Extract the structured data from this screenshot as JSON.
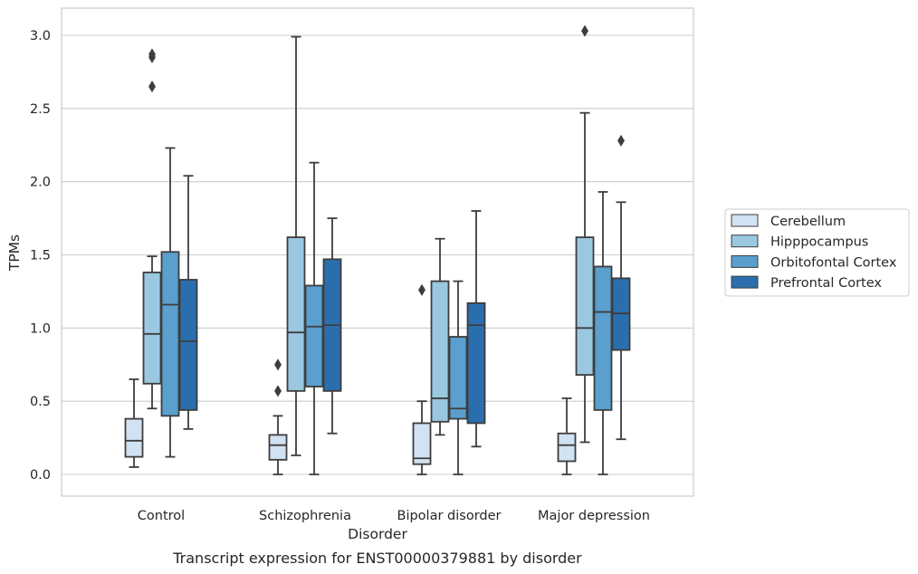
{
  "chart_data": {
    "type": "box",
    "caption": "Transcript expression for ENST00000379881 by disorder",
    "xlabel": "Disorder",
    "ylabel": "TPMs",
    "ylim": [
      -0.15,
      3.2
    ],
    "yticks": [
      0.0,
      0.5,
      1.0,
      1.5,
      2.0,
      2.5,
      3.0
    ],
    "ytick_labels": [
      "0.0",
      "0.5",
      "1.0",
      "1.5",
      "2.0",
      "2.5",
      "3.0"
    ],
    "grid": "horizontal",
    "legend_position": "right",
    "categories": [
      "Control",
      "Schizophrenia",
      "Bipolar disorder",
      "Major depression"
    ],
    "series": [
      {
        "name": "Cerebellum",
        "color": "#d1e2f2",
        "boxes": [
          {
            "whislo": 0.05,
            "q1": 0.12,
            "median": 0.23,
            "q3": 0.38,
            "whishi": 0.65,
            "fliers": []
          },
          {
            "whislo": 0.0,
            "q1": 0.1,
            "median": 0.2,
            "q3": 0.27,
            "whishi": 0.4,
            "fliers": [
              0.57,
              0.75
            ]
          },
          {
            "whislo": 0.0,
            "q1": 0.07,
            "median": 0.11,
            "q3": 0.35,
            "whishi": 0.5,
            "fliers": [
              1.26
            ]
          },
          {
            "whislo": 0.0,
            "q1": 0.09,
            "median": 0.2,
            "q3": 0.28,
            "whishi": 0.52,
            "fliers": []
          }
        ]
      },
      {
        "name": "Hipppocampus",
        "color": "#9ac8e0",
        "boxes": [
          {
            "whislo": 0.45,
            "q1": 0.62,
            "median": 0.96,
            "q3": 1.38,
            "whishi": 1.49,
            "fliers": [
              2.65,
              2.85,
              2.87
            ]
          },
          {
            "whislo": 0.13,
            "q1": 0.57,
            "median": 0.97,
            "q3": 1.62,
            "whishi": 2.99,
            "fliers": []
          },
          {
            "whislo": 0.27,
            "q1": 0.36,
            "median": 0.52,
            "q3": 1.32,
            "whishi": 1.61,
            "fliers": []
          },
          {
            "whislo": 0.22,
            "q1": 0.68,
            "median": 1.0,
            "q3": 1.62,
            "whishi": 2.47,
            "fliers": [
              3.03
            ]
          }
        ]
      },
      {
        "name": "Orbitofontal Cortex",
        "color": "#5a9fcd",
        "boxes": [
          {
            "whislo": 0.12,
            "q1": 0.4,
            "median": 1.16,
            "q3": 1.52,
            "whishi": 2.23,
            "fliers": []
          },
          {
            "whislo": 0.0,
            "q1": 0.6,
            "median": 1.01,
            "q3": 1.29,
            "whishi": 2.13,
            "fliers": []
          },
          {
            "whislo": 0.0,
            "q1": 0.38,
            "median": 0.45,
            "q3": 0.94,
            "whishi": 1.32,
            "fliers": []
          },
          {
            "whislo": 0.0,
            "q1": 0.44,
            "median": 1.11,
            "q3": 1.42,
            "whishi": 1.93,
            "fliers": []
          }
        ]
      },
      {
        "name": "Prefrontal Cortex",
        "color": "#2a6ead",
        "boxes": [
          {
            "whislo": 0.31,
            "q1": 0.44,
            "median": 0.91,
            "q3": 1.33,
            "whishi": 2.04,
            "fliers": []
          },
          {
            "whislo": 0.28,
            "q1": 0.57,
            "median": 1.02,
            "q3": 1.47,
            "whishi": 1.75,
            "fliers": []
          },
          {
            "whislo": 0.19,
            "q1": 0.35,
            "median": 1.02,
            "q3": 1.17,
            "whishi": 1.8,
            "fliers": []
          },
          {
            "whislo": 0.24,
            "q1": 0.85,
            "median": 1.1,
            "q3": 1.34,
            "whishi": 1.86,
            "fliers": [
              2.28
            ]
          }
        ]
      }
    ]
  }
}
